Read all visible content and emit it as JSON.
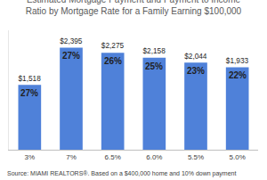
{
  "chart_data": {
    "type": "bar",
    "title": "Estimated Mortgage Payment and Payment to Income Ratio by Mortgage Rate for a Family Earning $100,000",
    "categories": [
      "3%",
      "7%",
      "6.5%",
      "6.0%",
      "5.5%",
      "5.0%"
    ],
    "values": [
      1518,
      2395,
      2275,
      2158,
      2044,
      1933
    ],
    "value_labels": [
      "$1,518",
      "$2,395",
      "$2,275",
      "$2,158",
      "$2,044",
      "$1,933"
    ],
    "ratio": [
      27,
      27,
      26,
      25,
      23,
      22
    ],
    "ratio_labels": [
      "27%",
      "27%",
      "26%",
      "25%",
      "23%",
      "22%"
    ],
    "source": "Source: MIAMI REALTORS®. Based on a $400,000 home and 10% down payment",
    "color": "#4f81d9",
    "ylim": [
      0,
      2800
    ],
    "yticks": [],
    "grid": false,
    "data_labels": true,
    "tick_labels": "x"
  }
}
